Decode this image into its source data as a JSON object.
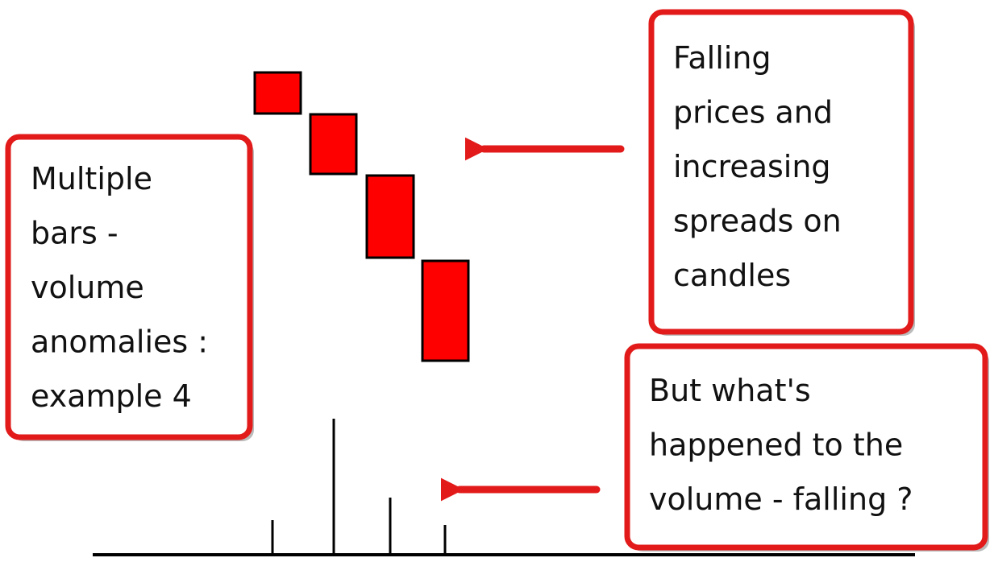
{
  "left_box": {
    "lines": [
      "Multiple",
      "bars -",
      "volume",
      "anomalies :",
      "example 4"
    ]
  },
  "top_right_box": {
    "lines": [
      "Falling",
      "prices and",
      "increasing",
      "spreads on",
      "candles"
    ]
  },
  "bottom_right_box": {
    "lines": [
      "But what's",
      "happened to the",
      "volume - falling ?"
    ]
  }
}
